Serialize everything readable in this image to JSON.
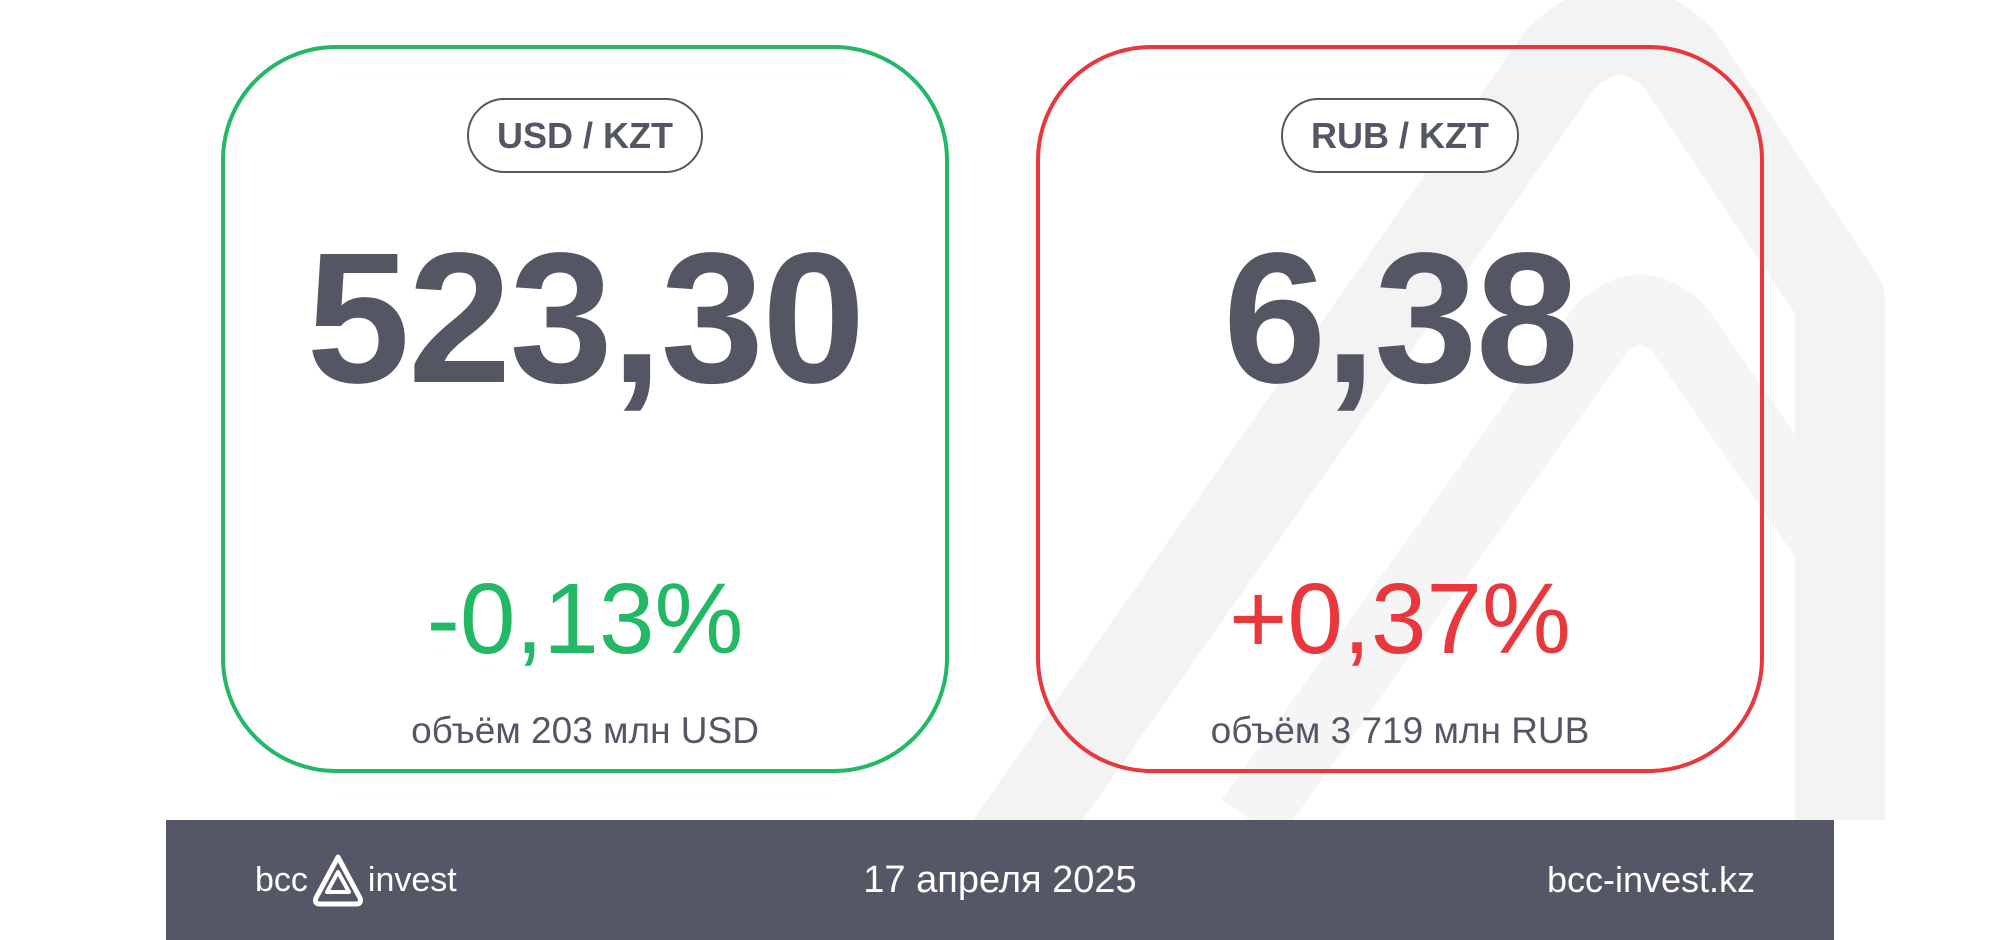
{
  "cards": [
    {
      "pair": "USD / KZT",
      "rate": "523,30",
      "change": "-0,13%",
      "volume": "объём 203 млн USD",
      "trend_color": "#22b866"
    },
    {
      "pair": "RUB / KZT",
      "rate": "6,38",
      "change": "+0,37%",
      "volume": "объём 3 719 млн RUB",
      "trend_color": "#e8383d"
    }
  ],
  "footer": {
    "logo_left": "bcc",
    "logo_right": "invest",
    "date": "17 апреля 2025",
    "site": "bcc-invest.kz"
  },
  "colors": {
    "text": "#545664",
    "footer_bg": "#555766",
    "up": "#e8383d",
    "down": "#22b866"
  }
}
